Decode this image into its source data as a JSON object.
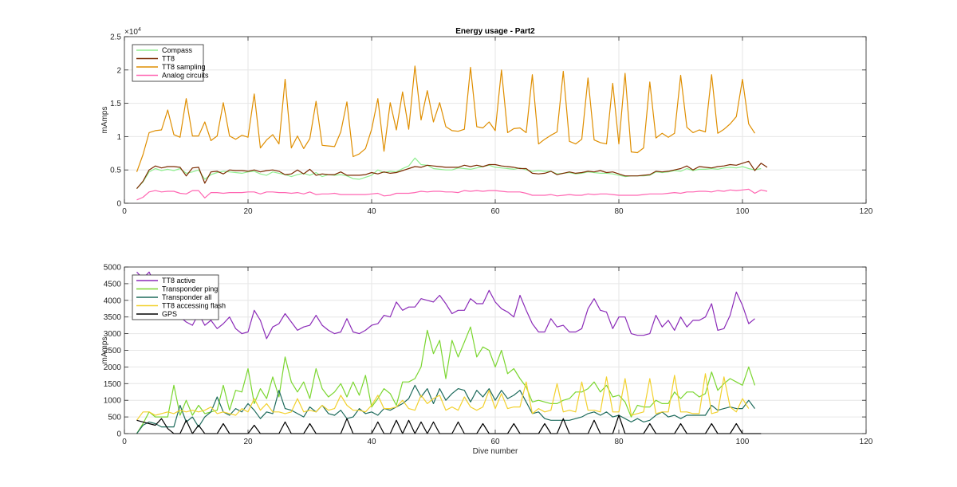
{
  "chart_data": [
    {
      "type": "line",
      "title": "Energy usage - Part2",
      "xlabel": "",
      "ylabel": "mAmps",
      "exponent_label": "×10",
      "exponent_power": "4",
      "xlim": [
        0,
        120
      ],
      "ylim": [
        0,
        25000
      ],
      "xticks": [
        0,
        20,
        40,
        60,
        80,
        100,
        120
      ],
      "yticks": [
        0,
        5000,
        10000,
        15000,
        20000,
        25000
      ],
      "ytick_labels": [
        "0",
        "0.5",
        "1",
        "1.5",
        "2",
        "2.5"
      ],
      "grid": true,
      "legend_position": "top-left",
      "x_start": 2,
      "series": [
        {
          "name": "Compass",
          "color": "#90EE90",
          "values": [
            2200,
            3200,
            4700,
            5200,
            4900,
            5100,
            4900,
            5200,
            4500,
            4700,
            5000,
            3600,
            4300,
            4600,
            4800,
            4700,
            4600,
            4500,
            4700,
            4800,
            4400,
            4200,
            4700,
            4500,
            4300,
            4000,
            4300,
            4500,
            4200,
            4600,
            4000,
            4300,
            4200,
            4300,
            4100,
            3700,
            3600,
            3900,
            4200,
            5000,
            4600,
            4800,
            4700,
            5200,
            5600,
            6800,
            5800,
            5700,
            5200,
            5100,
            5000,
            5000,
            5300,
            5200,
            5100,
            5300,
            5500,
            5700,
            5400,
            5300,
            5200,
            5100,
            5300,
            5000,
            4800,
            4900,
            4800,
            4800,
            4400,
            4500,
            4600,
            4400,
            4500,
            4700,
            4600,
            4500,
            4500,
            4400,
            4200,
            4000,
            4100,
            4100,
            4100,
            4200,
            4700,
            4600,
            4700,
            4900,
            4800,
            5200,
            4900,
            5100,
            5100,
            5200,
            5100,
            5300,
            5400,
            5300,
            5500,
            5200,
            5000,
            5200
          ]
        },
        {
          "name": "TT8",
          "color": "#7B2A00",
          "values": [
            2200,
            3300,
            5000,
            5600,
            5300,
            5500,
            5500,
            5400,
            4100,
            5300,
            5400,
            3000,
            4700,
            4800,
            4400,
            5000,
            4900,
            4900,
            4800,
            5000,
            4700,
            4900,
            5000,
            4800,
            4300,
            4400,
            5000,
            4400,
            5100,
            4200,
            4400,
            4300,
            4300,
            4700,
            4200,
            4200,
            4200,
            4300,
            4600,
            4400,
            4700,
            4500,
            4600,
            4900,
            5200,
            5500,
            5400,
            5700,
            5600,
            5500,
            5400,
            5400,
            5400,
            5700,
            5500,
            5700,
            5500,
            5800,
            5800,
            5600,
            5500,
            5400,
            5200,
            5200,
            4500,
            4400,
            4500,
            4800,
            4300,
            4500,
            4700,
            4500,
            4600,
            4800,
            4700,
            4900,
            4600,
            4700,
            4400,
            4100,
            4100,
            4100,
            4200,
            4300,
            4800,
            4700,
            4800,
            5000,
            5200,
            5600,
            5000,
            5500,
            5400,
            5300,
            5500,
            5600,
            5800,
            5700,
            6000,
            6300,
            4900,
            6000,
            5400
          ]
        },
        {
          "name": "TT8 sampling",
          "color": "#DF8E00",
          "values": [
            4700,
            7300,
            10600,
            10900,
            11000,
            14000,
            10300,
            9900,
            15700,
            10100,
            10100,
            12200,
            9400,
            10100,
            15100,
            10100,
            9600,
            10200,
            9900,
            16400,
            8300,
            9500,
            10300,
            8900,
            18600,
            8300,
            10100,
            8200,
            9700,
            15300,
            8700,
            8600,
            8500,
            10700,
            15200,
            7000,
            7400,
            8200,
            11100,
            15700,
            7800,
            15100,
            11000,
            16700,
            11100,
            20600,
            12500,
            16900,
            12200,
            15100,
            11500,
            10900,
            10800,
            11100,
            20400,
            11500,
            11300,
            12200,
            10900,
            20000,
            10600,
            11200,
            11300,
            10600,
            19300,
            8900,
            9600,
            10200,
            10700,
            19800,
            9300,
            8900,
            9600,
            18800,
            9500,
            9100,
            8900,
            18000,
            8900,
            19500,
            7700,
            7600,
            8300,
            18200,
            9800,
            10500,
            9900,
            10500,
            19200,
            11400,
            10600,
            11000,
            10700,
            19300,
            10500,
            11100,
            11900,
            13000,
            18600,
            11900,
            10500
          ]
        },
        {
          "name": "Analog circuits",
          "color": "#FF66B2",
          "values": [
            500,
            900,
            1700,
            1900,
            1700,
            1800,
            1800,
            1500,
            1400,
            1900,
            1900,
            800,
            1600,
            1600,
            1500,
            1600,
            1600,
            1600,
            1700,
            1700,
            1400,
            1700,
            1700,
            1600,
            1600,
            1500,
            1600,
            1400,
            1700,
            1300,
            1400,
            1400,
            1500,
            1300,
            1300,
            1300,
            1300,
            1300,
            1400,
            1500,
            1100,
            1200,
            1500,
            1500,
            1500,
            1600,
            1800,
            1700,
            1800,
            1800,
            1700,
            1700,
            1600,
            1900,
            1800,
            1900,
            1800,
            1900,
            1900,
            1800,
            1700,
            1700,
            1700,
            1500,
            1200,
            1200,
            1200,
            1300,
            1100,
            1200,
            1300,
            1200,
            1200,
            1400,
            1300,
            1400,
            1400,
            1300,
            1200,
            1200,
            1200,
            1200,
            1300,
            1400,
            1400,
            1400,
            1500,
            1600,
            1500,
            1700,
            1700,
            1800,
            1800,
            1700,
            1900,
            1800,
            2000,
            1900,
            2000,
            2100,
            1500,
            2000,
            1800
          ]
        }
      ]
    },
    {
      "type": "line",
      "title": "",
      "xlabel": "Dive number",
      "ylabel": "mAmps",
      "xlim": [
        0,
        120
      ],
      "ylim": [
        0,
        5000
      ],
      "xticks": [
        0,
        20,
        40,
        60,
        80,
        100,
        120
      ],
      "yticks": [
        0,
        500,
        1000,
        1500,
        2000,
        2500,
        3000,
        3500,
        4000,
        4500,
        5000
      ],
      "grid": true,
      "legend_position": "top-left",
      "x_start": 2,
      "series": [
        {
          "name": "TT8 active",
          "color": "#8B2BB8",
          "values": [
            4850,
            4650,
            4850,
            4450,
            4250,
            3900,
            3550,
            3500,
            3350,
            3250,
            3600,
            3250,
            3400,
            3150,
            3300,
            3500,
            3150,
            3000,
            3050,
            3700,
            3400,
            2850,
            3200,
            3300,
            3600,
            3350,
            3100,
            3200,
            3250,
            3550,
            3250,
            3100,
            3000,
            3050,
            3450,
            3050,
            3000,
            3100,
            3250,
            3300,
            3550,
            3500,
            3950,
            3700,
            3800,
            3800,
            4050,
            4000,
            3950,
            4150,
            3900,
            3600,
            3700,
            3700,
            4050,
            3900,
            3900,
            4300,
            3950,
            3750,
            3650,
            3500,
            4150,
            3700,
            3300,
            3050,
            3050,
            3450,
            3200,
            3250,
            3050,
            3050,
            3150,
            3750,
            4050,
            3700,
            3650,
            3150,
            3500,
            3500,
            3000,
            2950,
            2950,
            3000,
            3550,
            3200,
            3400,
            3100,
            3500,
            3200,
            3400,
            3400,
            3500,
            3900,
            3100,
            3150,
            3550,
            4250,
            3850,
            3300,
            3450
          ]
        },
        {
          "name": "Transponder ping",
          "color": "#7BD630",
          "values": [
            0,
            300,
            650,
            500,
            500,
            500,
            1450,
            550,
            1000,
            550,
            850,
            600,
            650,
            700,
            1450,
            700,
            1300,
            1250,
            1950,
            900,
            1350,
            1050,
            1700,
            1100,
            2300,
            1550,
            1250,
            1550,
            1050,
            1950,
            1350,
            1100,
            1250,
            1500,
            1100,
            1550,
            1150,
            1750,
            800,
            1050,
            1350,
            1200,
            850,
            1550,
            1550,
            1650,
            2000,
            3100,
            2400,
            2800,
            1650,
            2800,
            2300,
            2750,
            3200,
            2300,
            2600,
            2500,
            2000,
            2500,
            1800,
            1950,
            1650,
            1400,
            950,
            1000,
            950,
            900,
            900,
            1000,
            1050,
            1250,
            1250,
            1350,
            1550,
            1250,
            1450,
            1100,
            1150,
            950,
            500,
            850,
            800,
            800,
            1000,
            900,
            900,
            1250,
            1050,
            1250,
            1250,
            1100,
            1200,
            1850,
            1300,
            1500,
            1650,
            1550,
            1450,
            2000,
            1450
          ]
        },
        {
          "name": "Transponder all",
          "color": "#1E6B5C",
          "values": [
            0,
            250,
            350,
            300,
            200,
            200,
            200,
            850,
            350,
            500,
            200,
            500,
            650,
            1100,
            650,
            550,
            750,
            650,
            900,
            700,
            450,
            650,
            600,
            1300,
            750,
            700,
            600,
            500,
            800,
            650,
            850,
            600,
            550,
            700,
            450,
            500,
            750,
            600,
            650,
            550,
            750,
            700,
            800,
            900,
            1050,
            1450,
            1100,
            1350,
            900,
            1350,
            1000,
            1200,
            1350,
            1300,
            950,
            1300,
            1100,
            1350,
            1000,
            1300,
            1050,
            1150,
            1300,
            950,
            600,
            650,
            450,
            400,
            400,
            400,
            400,
            450,
            500,
            600,
            650,
            550,
            650,
            500,
            550,
            450,
            350,
            450,
            350,
            400,
            550,
            650,
            500,
            550,
            450,
            550,
            550,
            550,
            550,
            850,
            700,
            750,
            800,
            750,
            750,
            1000,
            750
          ]
        },
        {
          "name": "TT8 accessing flash",
          "color": "#F2D12E",
          "values": [
            400,
            650,
            650,
            550,
            600,
            650,
            600,
            700,
            650,
            700,
            650,
            700,
            800,
            600,
            650,
            600,
            550,
            750,
            650,
            1050,
            700,
            900,
            650,
            650,
            600,
            650,
            1050,
            650,
            700,
            650,
            850,
            700,
            750,
            1150,
            850,
            700,
            700,
            650,
            850,
            1150,
            750,
            750,
            800,
            1000,
            750,
            700,
            1150,
            900,
            1050,
            1150,
            700,
            800,
            700,
            1100,
            800,
            700,
            800,
            1300,
            750,
            1200,
            750,
            800,
            800,
            1550,
            600,
            750,
            650,
            700,
            1500,
            650,
            700,
            650,
            1550,
            700,
            700,
            650,
            1700,
            650,
            650,
            1650,
            550,
            600,
            650,
            1650,
            600,
            650,
            650,
            1750,
            650,
            650,
            600,
            600,
            1800,
            600,
            650,
            1700,
            800,
            650,
            1050,
            750
          ]
        },
        {
          "name": "GPS",
          "color": "#000000",
          "values": [
            400,
            350,
            300,
            250,
            450,
            150,
            0,
            0,
            400,
            0,
            250,
            0,
            0,
            0,
            300,
            0,
            0,
            0,
            0,
            250,
            0,
            0,
            0,
            0,
            350,
            0,
            0,
            0,
            300,
            0,
            0,
            0,
            0,
            0,
            450,
            0,
            0,
            0,
            0,
            350,
            0,
            0,
            400,
            0,
            400,
            0,
            350,
            0,
            350,
            0,
            0,
            0,
            350,
            0,
            0,
            0,
            300,
            0,
            0,
            0,
            0,
            300,
            0,
            0,
            0,
            0,
            300,
            0,
            0,
            450,
            0,
            0,
            0,
            0,
            400,
            0,
            0,
            0,
            550,
            0,
            0,
            0,
            0,
            300,
            0,
            0,
            0,
            0,
            300,
            0,
            0,
            0,
            0,
            300,
            0,
            0,
            0,
            300,
            0,
            0,
            0,
            0
          ]
        }
      ]
    }
  ]
}
